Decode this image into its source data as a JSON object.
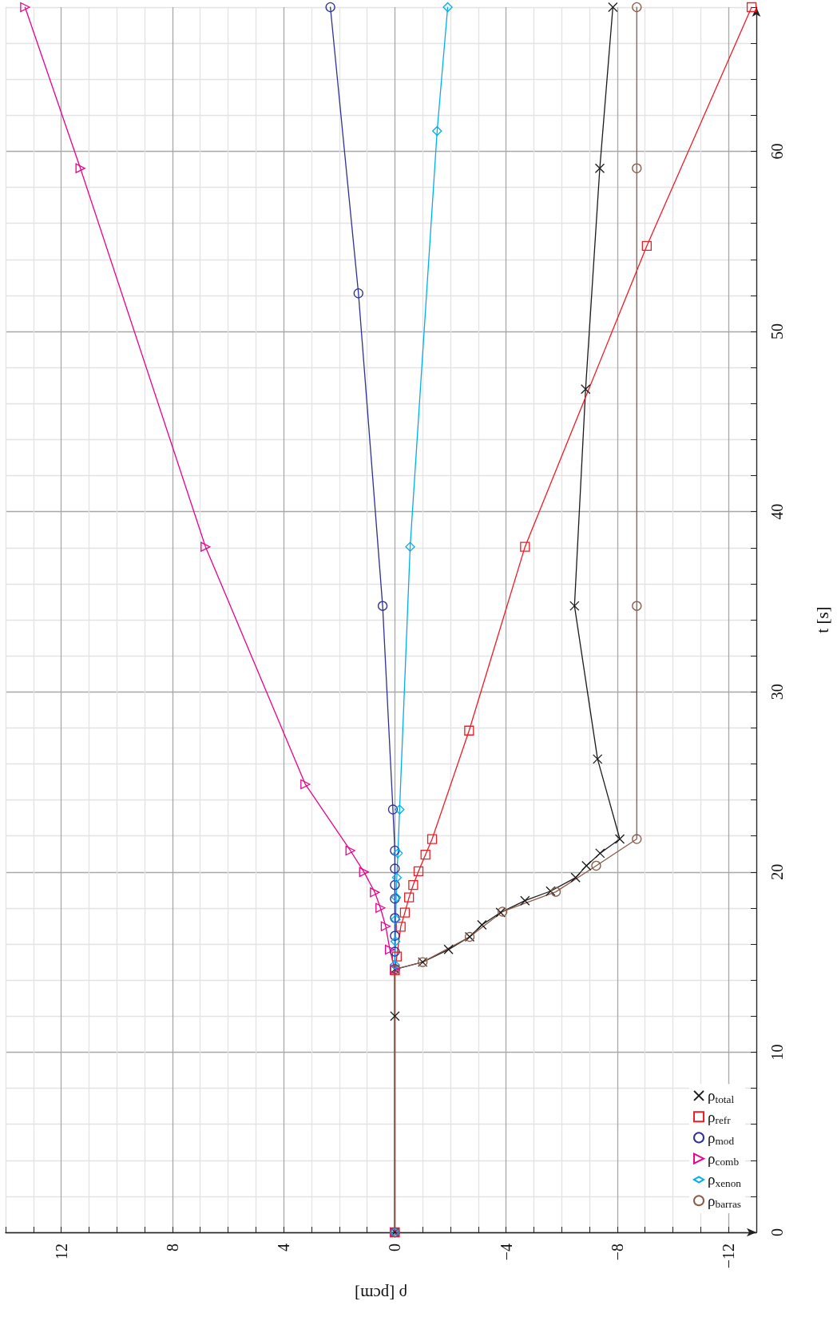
{
  "chart_data": {
    "type": "line",
    "xlabel": "ρ [pcm]",
    "ylabel": "t [s]",
    "xlim": [
      14,
      -13
    ],
    "ylim": [
      0,
      68
    ],
    "yticks": [
      {
        "value": 0,
        "label": "0"
      },
      {
        "value": 2,
        "label": null
      },
      {
        "value": 4,
        "label": null
      },
      {
        "value": 6,
        "label": null
      },
      {
        "value": 8,
        "label": null
      },
      {
        "value": 10,
        "label": "10"
      },
      {
        "value": 12,
        "label": null
      },
      {
        "value": 14,
        "label": null
      },
      {
        "value": 16,
        "label": null
      },
      {
        "value": 18,
        "label": null
      },
      {
        "value": 20,
        "label": "20"
      },
      {
        "value": 22,
        "label": null
      },
      {
        "value": 24,
        "label": null
      },
      {
        "value": 26,
        "label": null
      },
      {
        "value": 28,
        "label": null
      },
      {
        "value": 30,
        "label": "30"
      },
      {
        "value": 32,
        "label": null
      },
      {
        "value": 34,
        "label": null
      },
      {
        "value": 36,
        "label": null
      },
      {
        "value": 38,
        "label": null
      },
      {
        "value": 40,
        "label": "40"
      },
      {
        "value": 42,
        "label": null
      },
      {
        "value": 44,
        "label": null
      },
      {
        "value": 46,
        "label": null
      },
      {
        "value": 48,
        "label": null
      },
      {
        "value": 50,
        "label": "50"
      },
      {
        "value": 52,
        "label": null
      },
      {
        "value": 54,
        "label": null
      },
      {
        "value": 56,
        "label": null
      },
      {
        "value": 58,
        "label": null
      },
      {
        "value": 60,
        "label": "60"
      },
      {
        "value": 62,
        "label": null
      },
      {
        "value": 64,
        "label": null
      },
      {
        "value": 66,
        "label": null
      },
      {
        "value": 68,
        "label": null
      }
    ],
    "xticks": [
      {
        "value": 14,
        "label": null
      },
      {
        "value": 13,
        "label": null
      },
      {
        "value": 12,
        "label": "12"
      },
      {
        "value": 11,
        "label": null
      },
      {
        "value": 10,
        "label": null
      },
      {
        "value": 9,
        "label": null
      },
      {
        "value": 8,
        "label": "8"
      },
      {
        "value": 7,
        "label": null
      },
      {
        "value": 6,
        "label": null
      },
      {
        "value": 5,
        "label": null
      },
      {
        "value": 4,
        "label": "4"
      },
      {
        "value": 3,
        "label": null
      },
      {
        "value": 2,
        "label": null
      },
      {
        "value": 1,
        "label": null
      },
      {
        "value": 0,
        "label": "0"
      },
      {
        "value": -1,
        "label": null
      },
      {
        "value": -2,
        "label": null
      },
      {
        "value": -3,
        "label": null
      },
      {
        "value": -4,
        "label": "−4"
      },
      {
        "value": -5,
        "label": null
      },
      {
        "value": -6,
        "label": null
      },
      {
        "value": -7,
        "label": null
      },
      {
        "value": -8,
        "label": "−8"
      },
      {
        "value": -9,
        "label": null
      },
      {
        "value": -10,
        "label": null
      },
      {
        "value": -11,
        "label": null
      },
      {
        "value": -12,
        "label": "−12"
      },
      {
        "value": -13,
        "label": null
      }
    ],
    "grid": true,
    "legend": "bottom right",
    "line_style": "solid",
    "series": [
      {
        "name": "ρ$_{total}$",
        "color": "#1a1a1a",
        "marker": "cross",
        "values": [
          0,
          12,
          14.6,
          15.0,
          15.7,
          16.4,
          17.07,
          17.75,
          18.41,
          18.94,
          19.69,
          20.35,
          21.04,
          21.83,
          26.27,
          34.77,
          46.8,
          59.06,
          68
        ],
        "x": [
          0,
          0,
          0,
          -1.0,
          -1.93,
          -2.69,
          -3.13,
          -3.8,
          -4.68,
          -5.6,
          -6.5,
          -6.89,
          -7.38,
          -8.09,
          -7.29,
          -6.46,
          -6.86,
          -7.37,
          -7.84
        ]
      },
      {
        "name": "ρ$_{refr}$",
        "color": "#ee1c25",
        "marker": "square",
        "values": [
          0,
          14.55,
          15.31,
          16.96,
          17.75,
          18.59,
          19.28,
          20.04,
          20.96,
          21.83,
          27.85,
          38.05,
          54.75,
          68
        ],
        "x": [
          0,
          0,
          -0.07,
          -0.21,
          -0.36,
          -0.51,
          -0.66,
          -0.85,
          -1.1,
          -1.34,
          -2.67,
          -4.68,
          -9.06,
          -12.83
        ]
      },
      {
        "name": "ρ$_{mod}$",
        "color": "#2e3192",
        "marker": "circle",
        "values": [
          0,
          14.62,
          15.58,
          16.46,
          17.45,
          18.52,
          19.28,
          20.19,
          21.19,
          23.47,
          34.77,
          52.12,
          68
        ],
        "x": [
          0,
          0,
          0,
          0,
          0,
          0,
          0,
          0,
          0,
          0.07,
          0.44,
          1.31,
          2.32
        ]
      },
      {
        "name": "ρ$_{comb}$",
        "color": "#ec008c",
        "marker": "triangle",
        "values": [
          0,
          14.6,
          15.69,
          16.99,
          18.01,
          18.87,
          20.0,
          21.19,
          24.87,
          38.05,
          59.06,
          68
        ],
        "x": [
          0,
          0,
          0.18,
          0.33,
          0.52,
          0.72,
          1.11,
          1.6,
          3.22,
          6.81,
          11.31,
          13.3
        ]
      },
      {
        "name": "ρ$_{xenon}$",
        "color": "#00aeef",
        "marker": "diamond",
        "values": [
          0,
          14.85,
          16.15,
          17.37,
          18.59,
          19.69,
          21.04,
          23.47,
          38.05,
          61.13,
          68
        ],
        "x": [
          0,
          0,
          -0.02,
          -0.03,
          -0.05,
          -0.07,
          -0.11,
          -0.17,
          -0.55,
          -1.52,
          -1.9
        ]
      },
      {
        "name": "ρ$_{barras}$",
        "color": "#8c5b4a",
        "marker": "circle",
        "values": [
          0,
          14.6,
          15.0,
          16.4,
          17.8,
          18.9,
          20.35,
          21.83,
          34.77,
          59.06,
          68
        ],
        "x": [
          0,
          0,
          -1.0,
          -2.69,
          -3.87,
          -5.79,
          -7.24,
          -8.7,
          -8.7,
          -8.7,
          -8.7
        ]
      }
    ]
  }
}
